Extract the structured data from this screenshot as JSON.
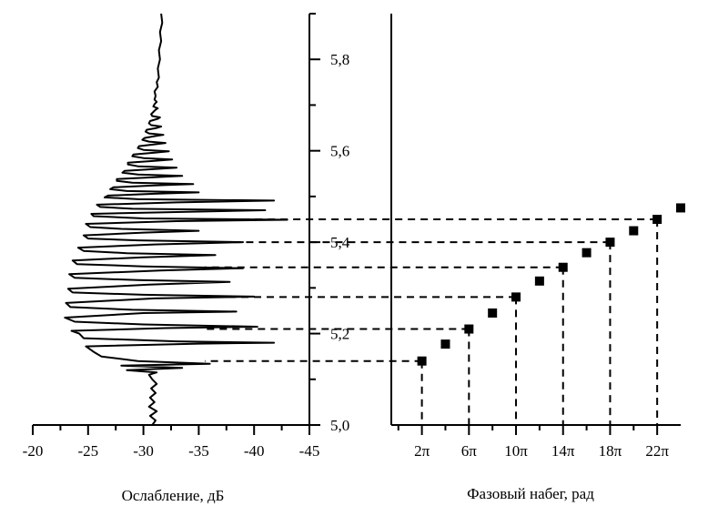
{
  "chart_data": [
    {
      "type": "line",
      "panel": "left",
      "orientation": "x = attenuation (horizontal), y = frequency (vertical, shared with right panel)",
      "xlabel": "Ослабление, дБ",
      "x_ticks": [
        "-20",
        "-25",
        "-30",
        "-35",
        "-40",
        "-45"
      ],
      "xlim": [
        -20,
        -45
      ],
      "x_increases_to_right": "more negative",
      "grid": false,
      "series": [
        {
          "points": [
            [
              -30.8,
              5.0
            ],
            [
              -31.1,
              5.01
            ],
            [
              -30.6,
              5.02
            ],
            [
              -31.2,
              5.03
            ],
            [
              -30.5,
              5.04
            ],
            [
              -31.0,
              5.05
            ],
            [
              -30.6,
              5.06
            ],
            [
              -31.1,
              5.07
            ],
            [
              -30.7,
              5.08
            ],
            [
              -31.2,
              5.09
            ],
            [
              -30.8,
              5.1
            ],
            [
              -30.5,
              5.11
            ],
            [
              -31.2,
              5.115
            ],
            [
              -28.5,
              5.12
            ],
            [
              -33.5,
              5.125
            ],
            [
              -28.0,
              5.13
            ],
            [
              -36.0,
              5.134
            ],
            [
              -29.5,
              5.14
            ],
            [
              -26.2,
              5.15
            ],
            [
              -25.5,
              5.16
            ],
            [
              -24.8,
              5.172
            ],
            [
              -35.0,
              5.178
            ],
            [
              -41.8,
              5.18
            ],
            [
              -33.0,
              5.183
            ],
            [
              -24.6,
              5.19
            ],
            [
              -24.2,
              5.2
            ],
            [
              -23.5,
              5.206
            ],
            [
              -32.0,
              5.212
            ],
            [
              -40.3,
              5.215
            ],
            [
              -30.0,
              5.22
            ],
            [
              -23.8,
              5.226
            ],
            [
              -22.9,
              5.235
            ],
            [
              -30.0,
              5.245
            ],
            [
              -38.4,
              5.248
            ],
            [
              -29.0,
              5.252
            ],
            [
              -23.4,
              5.258
            ],
            [
              -23.0,
              5.267
            ],
            [
              -31.0,
              5.277
            ],
            [
              -40.0,
              5.281
            ],
            [
              -30.0,
              5.285
            ],
            [
              -23.6,
              5.29
            ],
            [
              -23.2,
              5.298
            ],
            [
              -30.5,
              5.307
            ],
            [
              -37.8,
              5.313
            ],
            [
              -29.5,
              5.317
            ],
            [
              -23.8,
              5.322
            ],
            [
              -23.3,
              5.33
            ],
            [
              -31.5,
              5.338
            ],
            [
              -39.0,
              5.343
            ],
            [
              -30.0,
              5.347
            ],
            [
              -24.0,
              5.352
            ],
            [
              -23.6,
              5.36
            ],
            [
              -30.0,
              5.367
            ],
            [
              -36.5,
              5.372
            ],
            [
              -28.5,
              5.376
            ],
            [
              -24.6,
              5.381
            ],
            [
              -24.1,
              5.388
            ],
            [
              -31.0,
              5.395
            ],
            [
              -39.0,
              5.4
            ],
            [
              -29.5,
              5.404
            ],
            [
              -25.0,
              5.408
            ],
            [
              -24.6,
              5.415
            ],
            [
              -30.0,
              5.421
            ],
            [
              -35.0,
              5.425
            ],
            [
              -28.0,
              5.429
            ],
            [
              -25.2,
              5.433
            ],
            [
              -24.8,
              5.44
            ],
            [
              -33.0,
              5.446
            ],
            [
              -43.0,
              5.449
            ],
            [
              -30.0,
              5.452
            ],
            [
              -25.5,
              5.457
            ],
            [
              -25.3,
              5.462
            ],
            [
              -33.0,
              5.466
            ],
            [
              -41.0,
              5.47
            ],
            [
              -29.0,
              5.473
            ],
            [
              -26.1,
              5.477
            ],
            [
              -25.8,
              5.482
            ],
            [
              -33.0,
              5.487
            ],
            [
              -41.8,
              5.491
            ],
            [
              -29.5,
              5.494
            ],
            [
              -26.5,
              5.498
            ],
            [
              -26.8,
              5.502
            ],
            [
              -31.0,
              5.506
            ],
            [
              -35.0,
              5.509
            ],
            [
              -28.5,
              5.512
            ],
            [
              -27.0,
              5.516
            ],
            [
              -27.3,
              5.52
            ],
            [
              -31.0,
              5.524
            ],
            [
              -34.5,
              5.527
            ],
            [
              -29.0,
              5.53
            ],
            [
              -27.6,
              5.534
            ],
            [
              -27.6,
              5.538
            ],
            [
              -31.0,
              5.542
            ],
            [
              -33.5,
              5.545
            ],
            [
              -29.5,
              5.548
            ],
            [
              -28.1,
              5.552
            ],
            [
              -28.3,
              5.556
            ],
            [
              -31.0,
              5.56
            ],
            [
              -33.0,
              5.563
            ],
            [
              -29.5,
              5.566
            ],
            [
              -28.6,
              5.57
            ],
            [
              -28.6,
              5.574
            ],
            [
              -31.0,
              5.578
            ],
            [
              -32.6,
              5.581
            ],
            [
              -30.0,
              5.584
            ],
            [
              -29.0,
              5.588
            ],
            [
              -29.1,
              5.592
            ],
            [
              -31.0,
              5.596
            ],
            [
              -32.3,
              5.599
            ],
            [
              -30.0,
              5.602
            ],
            [
              -29.5,
              5.606
            ],
            [
              -29.6,
              5.61
            ],
            [
              -31.0,
              5.614
            ],
            [
              -32.0,
              5.617
            ],
            [
              -30.5,
              5.62
            ],
            [
              -29.9,
              5.624
            ],
            [
              -30.1,
              5.628
            ],
            [
              -31.0,
              5.632
            ],
            [
              -31.8,
              5.635
            ],
            [
              -30.5,
              5.638
            ],
            [
              -30.2,
              5.642
            ],
            [
              -30.3,
              5.646
            ],
            [
              -31.2,
              5.65
            ],
            [
              -31.6,
              5.653
            ],
            [
              -30.7,
              5.656
            ],
            [
              -30.5,
              5.66
            ],
            [
              -30.6,
              5.665
            ],
            [
              -31.3,
              5.67
            ],
            [
              -31.5,
              5.673
            ],
            [
              -30.8,
              5.676
            ],
            [
              -30.7,
              5.68
            ],
            [
              -30.9,
              5.685
            ],
            [
              -31.1,
              5.69
            ],
            [
              -31.3,
              5.693
            ],
            [
              -30.9,
              5.697
            ],
            [
              -31.0,
              5.702
            ],
            [
              -31.2,
              5.707
            ],
            [
              -31.0,
              5.712
            ],
            [
              -31.1,
              5.72
            ],
            [
              -31.0,
              5.73
            ],
            [
              -31.3,
              5.74
            ],
            [
              -31.2,
              5.75
            ],
            [
              -31.4,
              5.76
            ],
            [
              -31.3,
              5.78
            ],
            [
              -31.5,
              5.8
            ],
            [
              -31.4,
              5.82
            ],
            [
              -31.6,
              5.84
            ],
            [
              -31.5,
              5.86
            ],
            [
              -31.7,
              5.88
            ],
            [
              -31.6,
              5.9
            ]
          ]
        }
      ]
    },
    {
      "type": "scatter",
      "panel": "right",
      "xlabel": "Фазовый набег, рад",
      "ylabel": "",
      "x_ticks": [
        "2π",
        "6π",
        "10π",
        "14π",
        "18π",
        "22π"
      ],
      "x_tick_values": [
        2,
        6,
        10,
        14,
        18,
        22
      ],
      "x_unit": "π",
      "xlim": [
        -0.6,
        24.0
      ],
      "y_ticks": [
        "5,0",
        "5,2",
        "5,4",
        "5,6",
        "5,8"
      ],
      "y_tick_values": [
        5.0,
        5.2,
        5.4,
        5.6,
        5.8
      ],
      "ylim": [
        5.0,
        5.9
      ],
      "y_minor_step": 0.1,
      "grid": false,
      "series": [
        {
          "marker": "square",
          "points": [
            [
              2,
              5.14
            ],
            [
              4,
              5.177
            ],
            [
              6,
              5.21
            ],
            [
              8,
              5.245
            ],
            [
              10,
              5.28
            ],
            [
              12,
              5.315
            ],
            [
              14,
              5.345
            ],
            [
              16,
              5.377
            ],
            [
              18,
              5.4
            ],
            [
              20,
              5.425
            ],
            [
              22,
              5.45
            ],
            [
              24,
              5.475
            ]
          ]
        }
      ],
      "dashed_guides": [
        {
          "x": 2,
          "y": 5.14
        },
        {
          "x": 6,
          "y": 5.21
        },
        {
          "x": 10,
          "y": 5.28
        },
        {
          "x": 14,
          "y": 5.345
        },
        {
          "x": 18,
          "y": 5.4
        },
        {
          "x": 22,
          "y": 5.45
        }
      ]
    }
  ]
}
